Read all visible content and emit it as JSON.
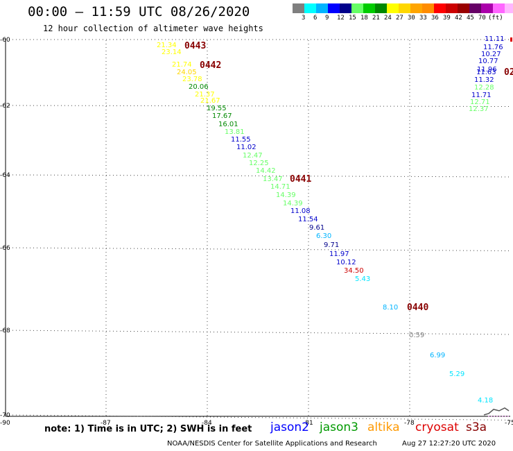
{
  "title": "00:00 – 11:59 UTC 08/26/2020",
  "subtitle": "12 hour collection of altimeter wave heights",
  "colorbar": {
    "colors": [
      "#7f7f7f",
      "#00ffff",
      "#00b4ff",
      "#0000ff",
      "#00008b",
      "#66ff66",
      "#00cc00",
      "#008800",
      "#ffff00",
      "#ffd700",
      "#ffa500",
      "#ff8c00",
      "#ff0000",
      "#cc0000",
      "#990000",
      "#660066",
      "#aa00aa",
      "#ff66ff",
      "#ffb6ff",
      "#000000"
    ],
    "labels": [
      "3",
      "6",
      "9",
      "12",
      "15",
      "18",
      "21",
      "24",
      "27",
      "30",
      "33",
      "36",
      "39",
      "42",
      "45",
      "70",
      "(ft)"
    ]
  },
  "axes": {
    "y_ticks": [
      "60",
      "62",
      "64",
      "66",
      "68",
      "70"
    ],
    "x_ticks": [
      "-90",
      "-87",
      "-84",
      "-81",
      "-78",
      "-75"
    ]
  },
  "note": "note: 1) Time is in UTC; 2) SWH is in feet",
  "satellites": [
    {
      "name": "jason2",
      "color": "#0000ff"
    },
    {
      "name": "jason3",
      "color": "#009900"
    },
    {
      "name": "altika",
      "color": "#ff9900"
    },
    {
      "name": "cryosat",
      "color": "#dd0000"
    },
    {
      "name": "s3a",
      "color": "#880000"
    }
  ],
  "footer_left": "NOAA/NESDIS Center for Satellite Applications and Research",
  "footer_right": "Aug 27 12:27:20 UTC 2020",
  "time_labels": [
    "0443",
    "0442",
    "0441",
    "0440",
    "02"
  ],
  "swh_points": [
    {
      "v": "21.34",
      "c": "#ffff00"
    },
    {
      "v": "23.14",
      "c": "#ffff00"
    },
    {
      "v": "21.74",
      "c": "#ffff00"
    },
    {
      "v": "24.05",
      "c": "#ffd700"
    },
    {
      "v": "23.78",
      "c": "#ffff00"
    },
    {
      "v": "20.06",
      "c": "#008800"
    },
    {
      "v": "21.37",
      "c": "#ffff00"
    },
    {
      "v": "21.67",
      "c": "#ffff00"
    },
    {
      "v": "19.55",
      "c": "#008800"
    },
    {
      "v": "17.67",
      "c": "#008800"
    },
    {
      "v": "16.01",
      "c": "#008800"
    },
    {
      "v": "13.81",
      "c": "#66ff66"
    },
    {
      "v": "11.55",
      "c": "#0000cc"
    },
    {
      "v": "11.02",
      "c": "#0000cc"
    },
    {
      "v": "12.47",
      "c": "#66ff66"
    },
    {
      "v": "12.25",
      "c": "#66ff66"
    },
    {
      "v": "14.42",
      "c": "#66ff66"
    },
    {
      "v": "13.47",
      "c": "#66ff66"
    },
    {
      "v": "14.71",
      "c": "#66ff66"
    },
    {
      "v": "14.39",
      "c": "#66ff66"
    },
    {
      "v": "14.39",
      "c": "#66ff66"
    },
    {
      "v": "11.08",
      "c": "#0000cc"
    },
    {
      "v": "11.54",
      "c": "#0000cc"
    },
    {
      "v": "9.61",
      "c": "#00008b"
    },
    {
      "v": "6.30",
      "c": "#00b4ff"
    },
    {
      "v": "9.71",
      "c": "#00008b"
    },
    {
      "v": "11.97",
      "c": "#0000cc"
    },
    {
      "v": "10.12",
      "c": "#0000cc"
    },
    {
      "v": "34.50",
      "c": "#cc0000"
    },
    {
      "v": "5.43",
      "c": "#00e5ff"
    },
    {
      "v": "8.10",
      "c": "#00b4ff"
    },
    {
      "v": "0.59",
      "c": "#7f7f7f"
    },
    {
      "v": "6.99",
      "c": "#00b4ff"
    },
    {
      "v": "5.29",
      "c": "#00e5ff"
    },
    {
      "v": "4.18",
      "c": "#00e5ff"
    },
    {
      "v": "11.11",
      "c": "#0000cc"
    },
    {
      "v": "11.76",
      "c": "#0000cc"
    },
    {
      "v": "10.27",
      "c": "#0000cc"
    },
    {
      "v": "10.77",
      "c": "#0000cc"
    },
    {
      "v": "11.96",
      "c": "#0000cc"
    },
    {
      "v": "11.63",
      "c": "#0000cc"
    },
    {
      "v": "11.32",
      "c": "#0000cc"
    },
    {
      "v": "12.28",
      "c": "#66ff66"
    },
    {
      "v": "11.71",
      "c": "#0000cc"
    },
    {
      "v": "12.71",
      "c": "#66ff66"
    },
    {
      "v": "12.37",
      "c": "#66ff66"
    }
  ]
}
